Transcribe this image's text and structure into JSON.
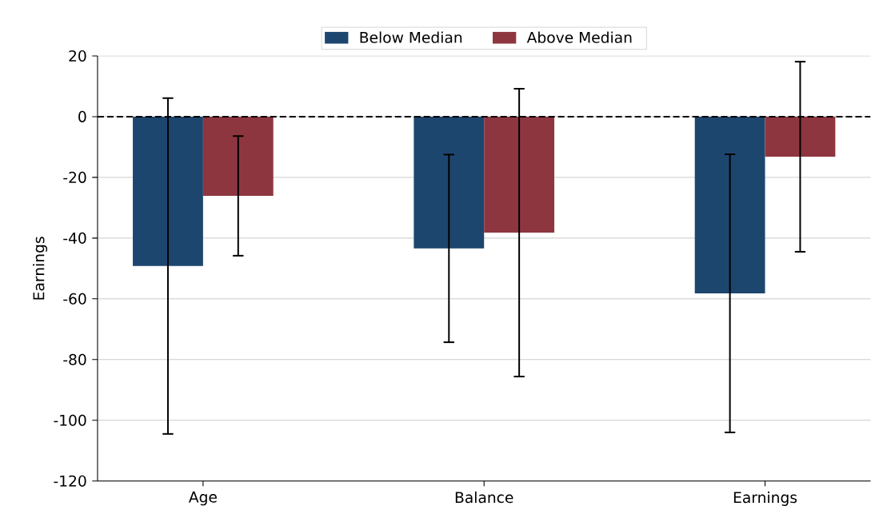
{
  "chart_data": {
    "type": "bar",
    "ylabel": "Earnings",
    "categories": [
      "Age",
      "Balance",
      "Earnings"
    ],
    "series": [
      {
        "name": "Below Median",
        "color": "#1d466f",
        "values": [
          -49.2,
          -43.4,
          -58.2
        ],
        "errors": [
          55.3,
          30.9,
          45.8
        ]
      },
      {
        "name": "Above Median",
        "color": "#8e3640",
        "values": [
          -26.1,
          -38.2,
          -13.2
        ],
        "errors": [
          19.7,
          47.4,
          31.3
        ]
      }
    ],
    "ylim": [
      -120,
      20
    ],
    "yticks": [
      -120,
      -100,
      -80,
      -60,
      -40,
      -20,
      0,
      20
    ],
    "ref_lines": [
      {
        "axis": "y",
        "value": 0,
        "color": "#000000",
        "line_style": "dashed"
      }
    ],
    "grid": "y",
    "legend": "top"
  }
}
